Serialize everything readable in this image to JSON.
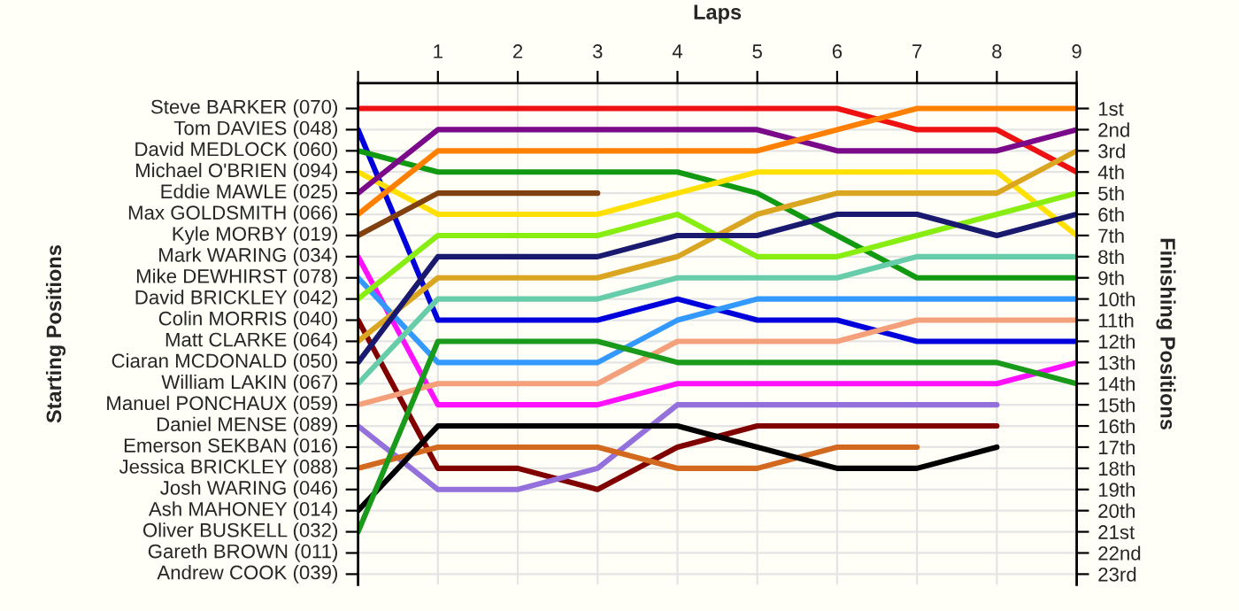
{
  "chart_data": {
    "type": "line",
    "xlabel": "Laps",
    "ylabel": "Finishing Positions",
    "x": [
      0,
      1,
      2,
      3,
      4,
      5,
      6,
      7,
      8,
      9
    ],
    "xlim": [
      0,
      9
    ],
    "xticks": [
      {
        "value": 0,
        "label": null
      },
      1,
      2,
      3,
      4,
      5,
      6,
      7,
      8,
      9
    ],
    "ylim": [
      23.5,
      -0.2
    ],
    "yticks": [
      {
        "value": 1,
        "label": "1st"
      },
      {
        "value": 2,
        "label": "2nd"
      },
      {
        "value": 3,
        "label": "3rd"
      },
      {
        "value": 4,
        "label": "4th"
      },
      {
        "value": 5,
        "label": "5th"
      },
      {
        "value": 6,
        "label": "6th"
      },
      {
        "value": 7,
        "label": "7th"
      },
      {
        "value": 8,
        "label": "8th"
      },
      {
        "value": 9,
        "label": "9th"
      },
      {
        "value": 10,
        "label": "10th"
      },
      {
        "value": 11,
        "label": "11th"
      },
      {
        "value": 12,
        "label": "12th"
      },
      {
        "value": 13,
        "label": "13th"
      },
      {
        "value": 14,
        "label": "14th"
      },
      {
        "value": 15,
        "label": "15th"
      },
      {
        "value": 16,
        "label": "16th"
      },
      {
        "value": 17,
        "label": "17th"
      },
      {
        "value": 18,
        "label": "18th"
      },
      {
        "value": 19,
        "label": "19th"
      },
      {
        "value": 20,
        "label": "20th"
      },
      {
        "value": 21,
        "label": "21st"
      },
      {
        "value": 22,
        "label": "22nd"
      },
      {
        "value": 23,
        "label": "23rd"
      }
    ],
    "annotations": [
      "Starting Positions",
      "Steve BARKER (070)",
      "Tom DAVIES (048)",
      "David MEDLOCK (060)",
      "Michael O'BRIEN (094)",
      "Eddie MAWLE (025)",
      "Max GOLDSMITH (066)",
      "Kyle MORBY (019)",
      "Mark WARING (034)",
      "Mike DEWHIRST (078)",
      "David BRICKLEY (042)",
      "Colin MORRIS (040)",
      "Matt CLARKE (064)",
      "Ciaran MCDONALD (050)",
      "William LAKIN (067)",
      "Manuel PONCHAUX (059)",
      "Daniel MENSE (089)",
      "Emerson SEKBAN (016)",
      "Jessica BRICKLEY (088)",
      "Josh WARING (046)",
      "Ash MAHONEY (014)",
      "Oliver BUSKELL (032)",
      "Gareth BROWN (011)",
      "Andrew COOK (039)"
    ],
    "grid": true,
    "marker": "none",
    "line_style": "solid",
    "series": [
      {
        "color": "#ee1111",
        "values": [
          1,
          1,
          1,
          1,
          1,
          1,
          1,
          2,
          2,
          4
        ]
      },
      {
        "color": "#0000dd",
        "values": [
          2,
          11,
          11,
          11,
          10,
          11,
          11,
          12,
          12,
          12
        ]
      },
      {
        "color": "#119911",
        "values": [
          3,
          4,
          4,
          4,
          4,
          5,
          7,
          9,
          9,
          9
        ]
      },
      {
        "color": "#ffe000",
        "values": [
          4,
          6,
          6,
          6,
          5,
          4,
          4,
          4,
          4,
          7
        ]
      },
      {
        "color": "#7a0a8a",
        "values": [
          5,
          2,
          2,
          2,
          2,
          2,
          3,
          3,
          3,
          2
        ]
      },
      {
        "color": "#ff8000",
        "values": [
          6,
          3,
          3,
          3,
          3,
          3,
          2,
          1,
          1,
          1
        ]
      },
      {
        "color": "#804010",
        "values": [
          7,
          5,
          5,
          5,
          null,
          null,
          null,
          null,
          null,
          null
        ]
      },
      {
        "color": "#ff10ff",
        "values": [
          8,
          15,
          15,
          15,
          14,
          14,
          14,
          14,
          14,
          13
        ]
      },
      {
        "color": "#3399ff",
        "values": [
          9,
          13,
          13,
          13,
          11,
          10,
          10,
          10,
          10,
          10
        ]
      },
      {
        "color": "#88ee11",
        "values": [
          10,
          7,
          7,
          7,
          6,
          8,
          8,
          7,
          6,
          5
        ]
      },
      {
        "color": "#800000",
        "values": [
          11,
          18,
          18,
          19,
          17,
          16,
          16,
          16,
          16,
          null
        ]
      },
      {
        "color": "#daa520",
        "values": [
          12,
          9,
          9,
          9,
          8,
          6,
          5,
          5,
          5,
          3
        ]
      },
      {
        "color": "#191970",
        "values": [
          13,
          8,
          8,
          8,
          7,
          7,
          6,
          6,
          7,
          6
        ]
      },
      {
        "color": "#66ccaa",
        "values": [
          14,
          10,
          10,
          10,
          9,
          9,
          9,
          8,
          8,
          8
        ]
      },
      {
        "color": "#f4a07a",
        "values": [
          15,
          14,
          14,
          14,
          12,
          12,
          12,
          11,
          11,
          11
        ]
      },
      {
        "color": "#9370db",
        "values": [
          16,
          19,
          19,
          18,
          15,
          15,
          15,
          15,
          15,
          null
        ]
      },
      {
        "color": "#d2691e",
        "values": [
          18,
          17,
          17,
          17,
          18,
          18,
          17,
          17,
          null,
          null
        ]
      },
      {
        "color": "#000000",
        "values": [
          20,
          16,
          16,
          16,
          16,
          17,
          18,
          18,
          17,
          null
        ]
      },
      {
        "color": "#1a9a1a",
        "values": [
          21,
          12,
          12,
          12,
          13,
          13,
          13,
          13,
          13,
          14
        ]
      }
    ]
  }
}
